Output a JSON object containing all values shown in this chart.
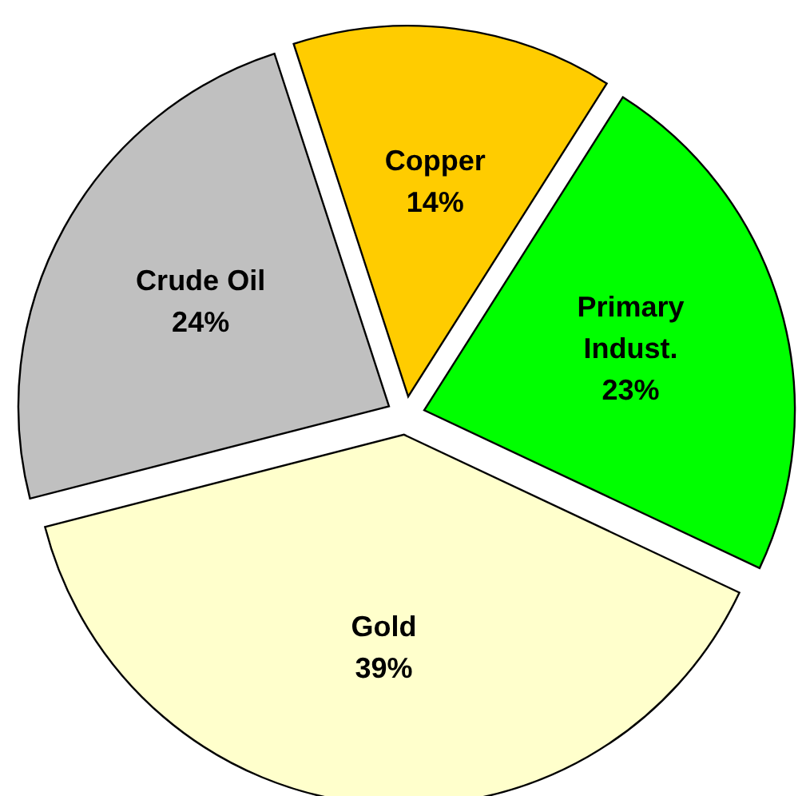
{
  "chart_data": {
    "type": "pie",
    "categories": [
      "Copper",
      "Primary Indust.",
      "Gold",
      "Crude Oil"
    ],
    "values": [
      14,
      23,
      39,
      24
    ],
    "value_labels": [
      "14%",
      "23%",
      "39%",
      "24%"
    ],
    "colors": [
      "#ffcc00",
      "#00ff00",
      "#ffffcc",
      "#c0c0c0"
    ]
  }
}
